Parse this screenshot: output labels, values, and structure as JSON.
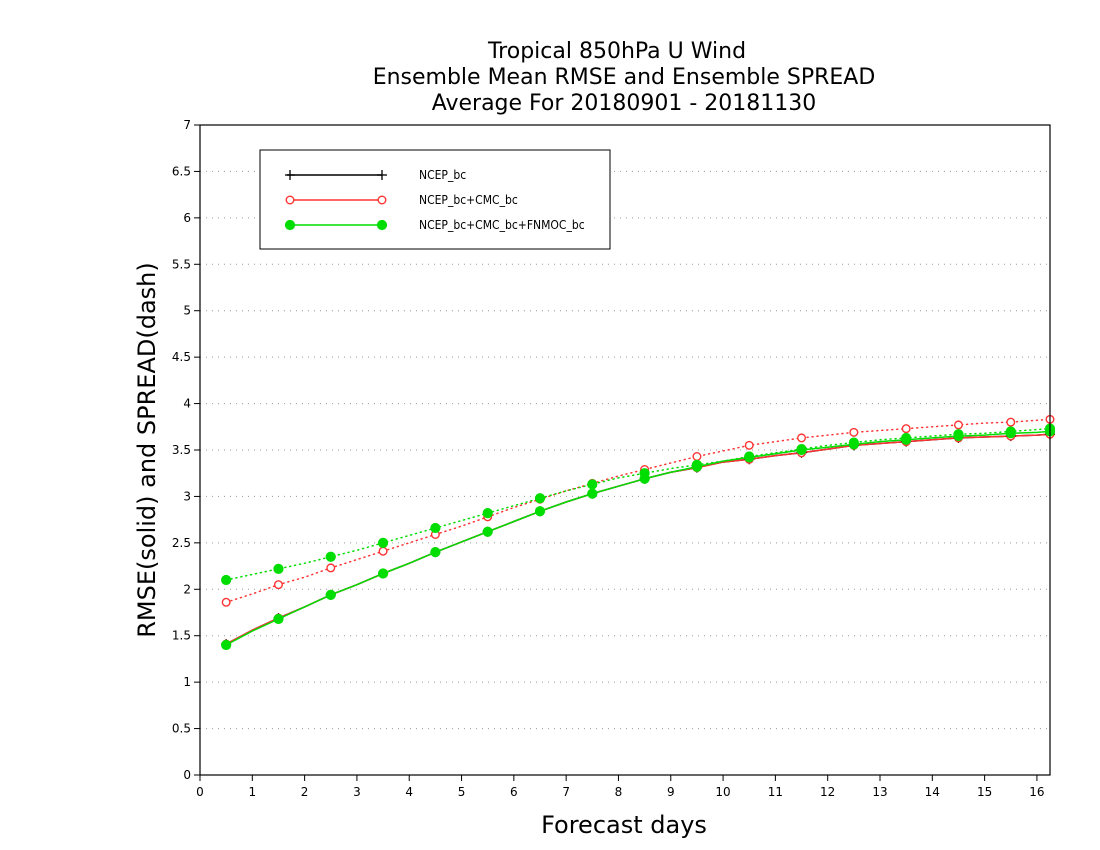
{
  "chart_data": {
    "type": "line",
    "title": [
      "Tropical 850hPa U Wind",
      "Ensemble Mean RMSE and Ensemble SPREAD",
      "Average For 20180901 - 20181130"
    ],
    "xlabel": "Forecast days",
    "ylabel": "RMSE(solid) and SPREAD(dash)",
    "xlim": [
      0,
      16.25
    ],
    "ylim": [
      0,
      7
    ],
    "x_ticks": [
      "0",
      "1",
      "2",
      "3",
      "4",
      "5",
      "6",
      "7",
      "8",
      "9",
      "10",
      "11",
      "12",
      "13",
      "14",
      "15",
      "16"
    ],
    "y_ticks": [
      "0",
      "0.5",
      "1",
      "1.5",
      "2",
      "2.5",
      "3",
      "3.5",
      "4",
      "4.5",
      "5",
      "5.5",
      "6",
      "6.5",
      "7"
    ],
    "y_grid": true,
    "legend_position": "top-left",
    "x": [
      0.5,
      1,
      1.5,
      2,
      2.5,
      3,
      3.5,
      4,
      4.5,
      5,
      5.5,
      6,
      6.5,
      7,
      7.5,
      8,
      8.5,
      9,
      9.5,
      10,
      10.5,
      11,
      11.5,
      12,
      12.5,
      13,
      13.5,
      14,
      14.5,
      15,
      15.5,
      16,
      16.25
    ],
    "series": [
      {
        "name": "NCEP_bc",
        "color": "#000000",
        "marker": "plus",
        "rmse": [
          1.41,
          1.56,
          1.69,
          1.81,
          1.94,
          2.05,
          2.17,
          2.28,
          2.4,
          2.51,
          2.62,
          2.73,
          2.84,
          2.94,
          3.03,
          3.11,
          3.19,
          3.26,
          3.31,
          3.37,
          3.4,
          3.44,
          3.47,
          3.51,
          3.55,
          3.57,
          3.59,
          3.61,
          3.63,
          3.64,
          3.65,
          3.66,
          3.67
        ],
        "spread": null
      },
      {
        "name": "NCEP_bc+CMC_bc",
        "color": "#ff3333",
        "marker": "open-circle",
        "rmse": [
          1.41,
          1.56,
          1.69,
          1.81,
          1.94,
          2.05,
          2.17,
          2.28,
          2.4,
          2.51,
          2.62,
          2.73,
          2.84,
          2.94,
          3.03,
          3.11,
          3.19,
          3.26,
          3.31,
          3.37,
          3.4,
          3.44,
          3.47,
          3.51,
          3.55,
          3.57,
          3.59,
          3.61,
          3.63,
          3.64,
          3.65,
          3.66,
          3.67
        ],
        "spread": [
          1.86,
          1.95,
          2.05,
          2.13,
          2.23,
          2.32,
          2.41,
          2.5,
          2.59,
          2.68,
          2.78,
          2.88,
          2.97,
          3.06,
          3.14,
          3.22,
          3.29,
          3.36,
          3.43,
          3.49,
          3.55,
          3.59,
          3.63,
          3.66,
          3.69,
          3.71,
          3.73,
          3.75,
          3.77,
          3.79,
          3.8,
          3.82,
          3.83
        ]
      },
      {
        "name": "NCEP_bc+CMC_bc+FNMOC_bc",
        "color": "#00dd00",
        "marker": "filled-circle",
        "rmse": [
          1.4,
          1.55,
          1.68,
          1.81,
          1.94,
          2.05,
          2.17,
          2.28,
          2.4,
          2.51,
          2.62,
          2.73,
          2.84,
          2.94,
          3.03,
          3.11,
          3.19,
          3.26,
          3.32,
          3.38,
          3.42,
          3.46,
          3.5,
          3.53,
          3.56,
          3.59,
          3.61,
          3.63,
          3.65,
          3.66,
          3.68,
          3.69,
          3.7
        ],
        "spread": [
          2.1,
          2.16,
          2.22,
          2.28,
          2.35,
          2.42,
          2.5,
          2.58,
          2.66,
          2.74,
          2.82,
          2.9,
          2.98,
          3.06,
          3.13,
          3.2,
          3.25,
          3.3,
          3.34,
          3.38,
          3.43,
          3.47,
          3.51,
          3.55,
          3.58,
          3.61,
          3.63,
          3.65,
          3.67,
          3.68,
          3.7,
          3.72,
          3.73
        ]
      }
    ]
  }
}
